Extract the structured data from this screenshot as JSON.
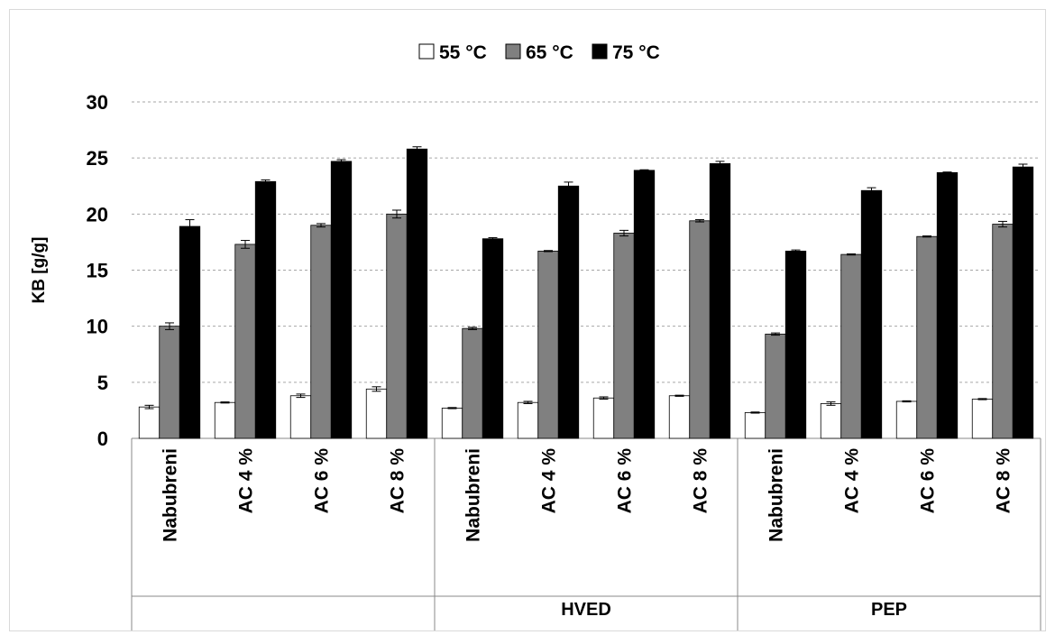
{
  "chart_data": {
    "type": "bar",
    "title": "",
    "xlabel": "",
    "ylabel": "KB [g/g]",
    "ylim": [
      0,
      30
    ],
    "yticks": [
      0,
      5,
      10,
      15,
      20,
      25,
      30
    ],
    "grid": true,
    "legend_position": "top-center",
    "groups": [
      {
        "label": "",
        "categories": [
          "Nabubreni",
          "AC 4 %",
          "AC 6 %",
          "AC 8 %"
        ]
      },
      {
        "label": "HVED",
        "categories": [
          "Nabubreni",
          "AC 4 %",
          "AC 6 %",
          "AC 8 %"
        ]
      },
      {
        "label": "PEP",
        "categories": [
          "Nabubreni",
          "AC 4 %",
          "AC 6 %",
          "AC 8 %"
        ]
      }
    ],
    "series": [
      {
        "name": "55 °C",
        "color": "#ffffff",
        "values": [
          2.8,
          3.2,
          3.8,
          4.4,
          2.7,
          3.2,
          3.6,
          3.8,
          2.3,
          3.1,
          3.3,
          3.5
        ],
        "errors": [
          0.15,
          0.05,
          0.15,
          0.2,
          0.05,
          0.1,
          0.1,
          0.05,
          0.05,
          0.15,
          0.05,
          0.05
        ]
      },
      {
        "name": "65 °C",
        "color": "#808080",
        "values": [
          10.0,
          17.3,
          19.0,
          20.0,
          9.8,
          16.7,
          18.3,
          19.4,
          9.3,
          16.4,
          18.0,
          19.1
        ],
        "errors": [
          0.3,
          0.35,
          0.15,
          0.35,
          0.1,
          0.05,
          0.25,
          0.1,
          0.1,
          0.05,
          0.05,
          0.25
        ]
      },
      {
        "name": "75 °C",
        "color": "#000000",
        "values": [
          18.9,
          22.9,
          24.7,
          25.8,
          17.8,
          22.5,
          23.9,
          24.5,
          16.7,
          22.1,
          23.7,
          24.2
        ],
        "errors": [
          0.6,
          0.15,
          0.15,
          0.2,
          0.1,
          0.35,
          0.05,
          0.2,
          0.1,
          0.25,
          0.05,
          0.25
        ]
      }
    ]
  }
}
